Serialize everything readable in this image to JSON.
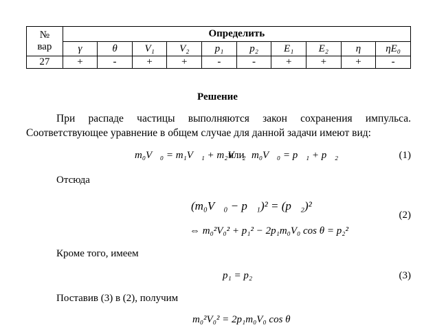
{
  "table": {
    "corner": [
      "№",
      "вар"
    ],
    "group_header": "Определить",
    "columns": [
      "γ",
      "θ",
      "V₁",
      "V₂",
      "p₁",
      "p₂",
      "E₁",
      "E₂",
      "η",
      "ηE₀"
    ],
    "row": {
      "variant": "27",
      "cells": [
        "+",
        "-",
        "+",
        "+",
        "-",
        "-",
        "+",
        "+",
        "+",
        "-"
      ]
    }
  },
  "solution": {
    "heading": "Решение",
    "paragraph": "При распаде частицы выполняются закон сохранения импульса. Соответствующее уравнение в общем случае для данной задачи имеют вид:",
    "eq1": {
      "left": "m₀V⃗₀ = m₁V⃗₁ + m₂V⃗₂",
      "connector": "или",
      "right": "m₀V⃗₀ = p⃗₁ + p⃗₂",
      "number": "(1)"
    },
    "text2": "Отсюда",
    "eq2": {
      "line1": "(m₀V⃗₀ − p⃗₁)² = (p⃗₂)²",
      "line2": "⇔ m₀²V₀² + p₁² − 2p₁m₀V₀ cos θ = p₂²",
      "number": "(2)"
    },
    "text3": "Кроме того, имеем",
    "eq3": {
      "formula": "p₁ = p₂",
      "number": "(3)"
    },
    "text4": "Поставив (3) в (2), получим",
    "eq4": {
      "formula": "m₀²V₀² = 2p₁m₀V₀ cos θ"
    }
  }
}
